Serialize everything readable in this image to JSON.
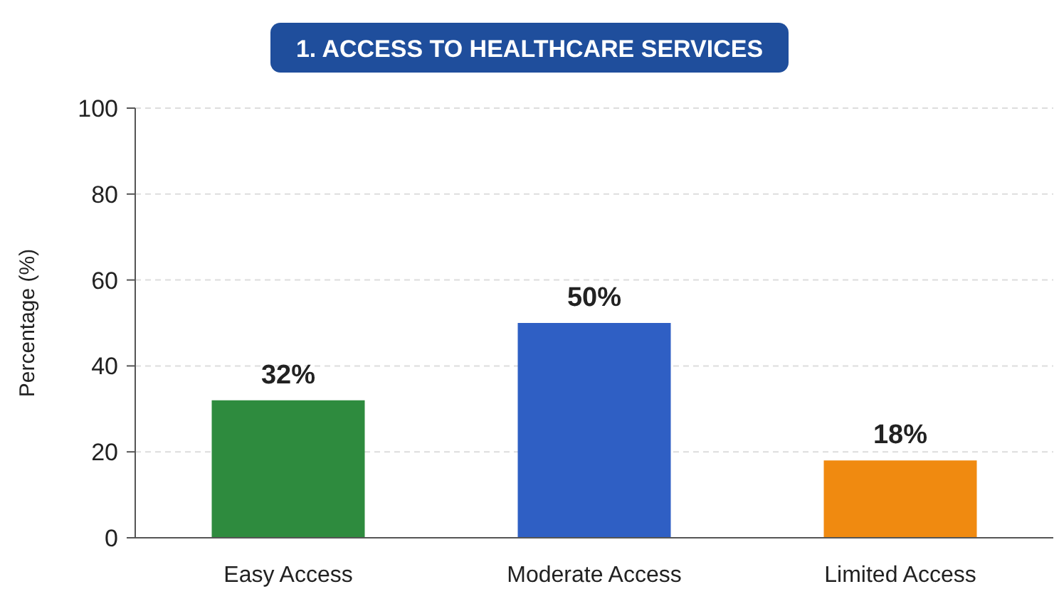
{
  "chart_data": {
    "type": "bar",
    "title": "1. ACCESS TO HEALTHCARE SERVICES",
    "ylabel": "Percentage (%)",
    "categories": [
      "Easy Access",
      "Moderate Access",
      "Limited Access"
    ],
    "values": [
      32,
      50,
      18
    ],
    "colors": [
      "#2e8b3e",
      "#2f5fc4",
      "#f08a10"
    ],
    "value_labels": [
      "32%",
      "50%",
      "18%"
    ],
    "ylim": [
      0,
      100
    ],
    "yticks": [
      0,
      20,
      40,
      60,
      80,
      100
    ],
    "grid": "y"
  }
}
